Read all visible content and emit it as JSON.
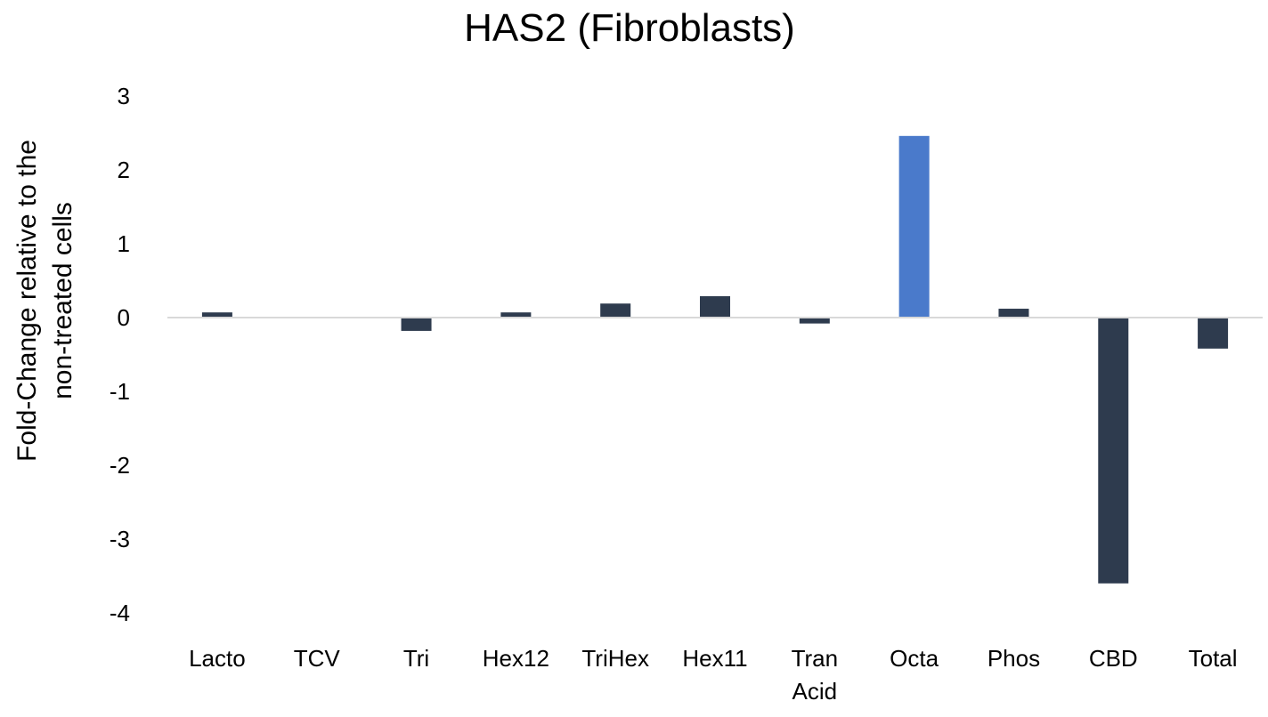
{
  "chart_data": {
    "type": "bar",
    "title": "HAS2 (Fibroblasts)",
    "ylabel_lines": [
      "Fold-Change relative to the",
      "non-treated cells"
    ],
    "xlabel": "",
    "ylim": [
      -4,
      3
    ],
    "yticks": [
      3,
      2,
      1,
      0,
      -1,
      -2,
      -3,
      -4
    ],
    "grid": false,
    "legend": "none",
    "categories": [
      [
        "Lacto"
      ],
      [
        "TCV"
      ],
      [
        "Tri"
      ],
      [
        "Hex12"
      ],
      [
        "TriHex"
      ],
      [
        "Hex11"
      ],
      [
        "Tran",
        "Acid"
      ],
      [
        "Octa"
      ],
      [
        "Phos"
      ],
      [
        "CBD"
      ],
      [
        "Total"
      ]
    ],
    "values": [
      0.07,
      0.0,
      -0.18,
      0.07,
      0.19,
      0.29,
      -0.08,
      2.46,
      0.12,
      -3.6,
      -0.42
    ],
    "colors": {
      "default": "#2e3b4e",
      "highlight": "#4a7acb",
      "axis": "#d9d9d9"
    },
    "highlight_index": 7
  }
}
